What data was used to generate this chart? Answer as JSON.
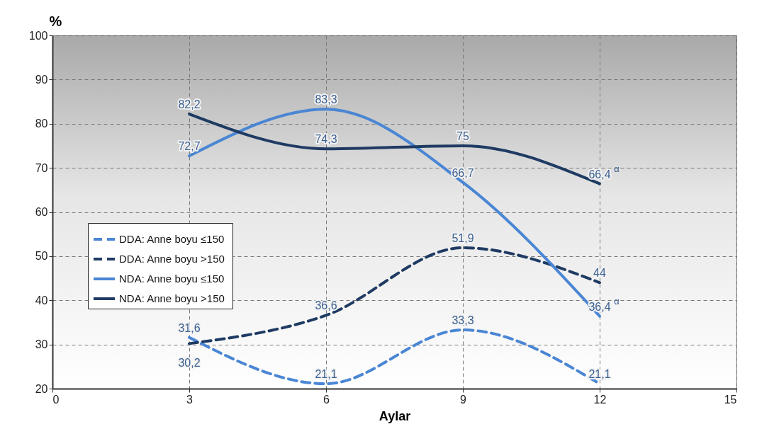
{
  "chart_data": {
    "type": "line",
    "xlabel": "Aylar",
    "ylabel": "%",
    "x": [
      3,
      6,
      9,
      12
    ],
    "xlim": [
      0,
      15
    ],
    "xticks": [
      0,
      3,
      6,
      9,
      12,
      15
    ],
    "ylim": [
      20,
      100
    ],
    "yticks": [
      20,
      30,
      40,
      50,
      60,
      70,
      80,
      90,
      100
    ],
    "grid": true,
    "legend": "left",
    "marker": "none",
    "series": [
      {
        "name": "DDA: Anne  boyu ≤150",
        "color": "#4a86d4",
        "line_style": "dashed",
        "values": [
          31.6,
          21.1,
          33.3,
          21.1
        ],
        "value_labels": [
          "31,6",
          "21,1",
          "33,3",
          "21,1"
        ]
      },
      {
        "name": "DDA: Anne  boyu >150",
        "color": "#1f3b63",
        "line_style": "dashed",
        "values": [
          30.2,
          36.6,
          51.9,
          44
        ],
        "value_labels": [
          "30,2",
          "36,6",
          "51,9",
          "44"
        ]
      },
      {
        "name": "NDA: Anne  boyu ≤150",
        "color": "#4a86d4",
        "line_style": "solid",
        "values": [
          72.7,
          83.3,
          66.7,
          36.4
        ],
        "value_labels": [
          "72,7",
          "83,3",
          "66,7",
          "36,4$^{α}$"
        ]
      },
      {
        "name": "NDA: Anne  boyu >150",
        "color": "#1f3b63",
        "line_style": "solid",
        "values": [
          82.2,
          74.3,
          75,
          66.4
        ],
        "value_labels": [
          "82,2",
          "74,3",
          "75",
          "66,4$^{α}$"
        ]
      }
    ]
  }
}
